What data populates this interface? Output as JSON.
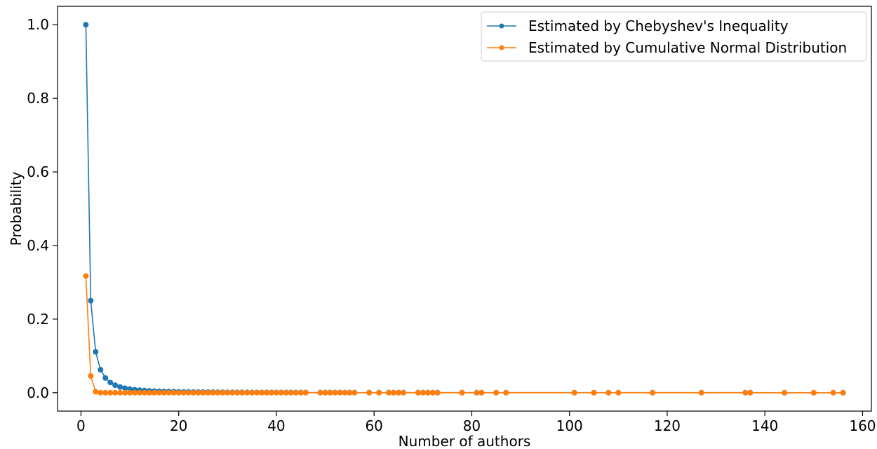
{
  "chart_data": {
    "type": "line",
    "xlabel": "Number of authors",
    "ylabel": "Probability",
    "xlim": [
      -4.8,
      161.8
    ],
    "ylim": [
      -0.05,
      1.05
    ],
    "x_ticks": [
      0,
      20,
      40,
      60,
      80,
      100,
      120,
      140,
      160
    ],
    "x_tick_labels": [
      "0",
      "20",
      "40",
      "60",
      "80",
      "100",
      "120",
      "140",
      "160"
    ],
    "y_ticks": [
      0.0,
      0.2,
      0.4,
      0.6,
      0.8,
      1.0
    ],
    "y_tick_labels": [
      "0.0",
      "0.2",
      "0.4",
      "0.6",
      "0.8",
      "1.0"
    ],
    "grid": false,
    "legend_position": "top-right",
    "x": [
      1,
      2,
      3,
      4,
      5,
      6,
      7,
      8,
      9,
      10,
      11,
      12,
      13,
      14,
      15,
      16,
      17,
      18,
      19,
      20,
      21,
      22,
      23,
      24,
      25,
      26,
      27,
      28,
      29,
      30,
      31,
      32,
      33,
      34,
      35,
      36,
      37,
      38,
      39,
      40,
      41,
      42,
      43,
      44,
      45,
      46,
      49,
      50,
      51,
      52,
      53,
      54,
      55,
      56,
      59,
      61,
      63,
      64,
      65,
      66,
      69,
      70,
      71,
      72,
      73,
      78,
      81,
      82,
      85,
      87,
      101,
      105,
      108,
      110,
      117,
      127,
      136,
      137,
      144,
      150,
      154,
      156
    ],
    "series": [
      {
        "name": "Estimated by Chebyshev's Inequality",
        "color": "#1f77b4",
        "values": [
          1.0,
          0.25,
          0.1111,
          0.0625,
          0.04,
          0.0278,
          0.0204,
          0.0156,
          0.0123,
          0.01,
          0.0083,
          0.0069,
          0.0059,
          0.0051,
          0.0044,
          0.0039,
          0.0035,
          0.0031,
          0.0028,
          0.0025,
          0.0023,
          0.0021,
          0.0019,
          0.0017,
          0.0016,
          0.0015,
          0.0014,
          0.0013,
          0.0012,
          0.0011,
          0.001,
          0.001,
          0.0009,
          0.0009,
          0.0008,
          0.0008,
          0.0007,
          0.0007,
          0.0007,
          0.0006,
          0.0006,
          0.0006,
          0.0005,
          0.0005,
          0.0005,
          0.0005,
          0.0004,
          0.0004,
          0.0004,
          0.0004,
          0.0004,
          0.0003,
          0.0003,
          0.0003,
          0.0003,
          0.0003,
          0.0003,
          0.0002,
          0.0002,
          0.0002,
          0.0002,
          0.0002,
          0.0002,
          0.0002,
          0.0002,
          0.0002,
          0.0002,
          0.0001,
          0.0001,
          0.0001,
          0.0001,
          0.0001,
          0.0001,
          0.0001,
          0.0001,
          0.0001,
          0.0001,
          0.0001,
          0.0,
          0.0,
          0.0,
          0.0
        ]
      },
      {
        "name": "Estimated by Cumulative Normal Distribution",
        "color": "#ff7f0e",
        "values": [
          0.3173,
          0.0455,
          0.0027,
          0.0001,
          0.0,
          0.0,
          0.0,
          0.0,
          0.0,
          0.0,
          0.0,
          0.0,
          0.0,
          0.0,
          0.0,
          0.0,
          0.0,
          0.0,
          0.0,
          0.0,
          0.0,
          0.0,
          0.0,
          0.0,
          0.0,
          0.0,
          0.0,
          0.0,
          0.0,
          0.0,
          0.0,
          0.0,
          0.0,
          0.0,
          0.0,
          0.0,
          0.0,
          0.0,
          0.0,
          0.0,
          0.0,
          0.0,
          0.0,
          0.0,
          0.0,
          0.0,
          0.0,
          0.0,
          0.0,
          0.0,
          0.0,
          0.0,
          0.0,
          0.0,
          0.0,
          0.0,
          0.0,
          0.0,
          0.0,
          0.0,
          0.0,
          0.0,
          0.0,
          0.0,
          0.0,
          0.0,
          0.0,
          0.0,
          0.0,
          0.0,
          0.0,
          0.0,
          0.0,
          0.0,
          0.0,
          0.0,
          0.0,
          0.0,
          0.0,
          0.0,
          0.0,
          0.0
        ]
      }
    ]
  }
}
